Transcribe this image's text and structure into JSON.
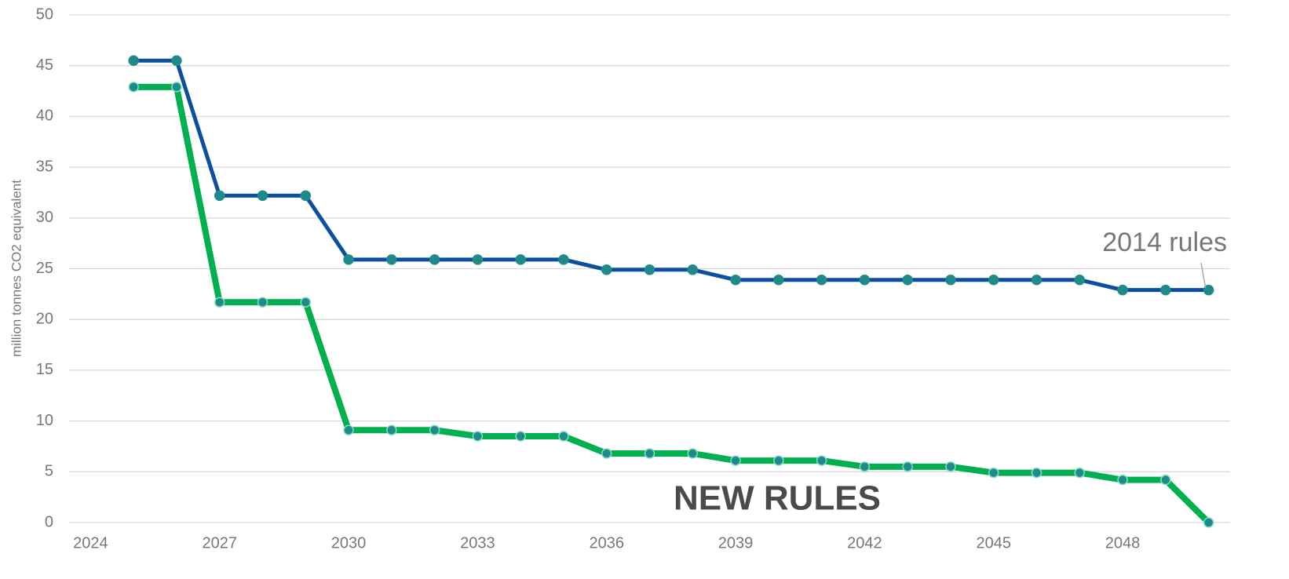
{
  "chart_data": {
    "type": "line",
    "y_label": "million tonnes CO2 equivalent",
    "x": [
      2025,
      2026,
      2027,
      2028,
      2029,
      2030,
      2031,
      2032,
      2033,
      2034,
      2035,
      2036,
      2037,
      2038,
      2039,
      2040,
      2041,
      2042,
      2043,
      2044,
      2045,
      2046,
      2047,
      2048,
      2049,
      2050
    ],
    "series": [
      {
        "name": "2014 rules",
        "color": "#0b4f9e",
        "marker_color": "#1f8a8a",
        "values": [
          45.5,
          45.5,
          32.2,
          32.2,
          32.2,
          25.9,
          25.9,
          25.9,
          25.9,
          25.9,
          25.9,
          24.9,
          24.9,
          24.9,
          23.9,
          23.9,
          23.9,
          23.9,
          23.9,
          23.9,
          23.9,
          23.9,
          23.9,
          22.9,
          22.9,
          22.9
        ]
      },
      {
        "name": "NEW RULES",
        "color": "#00b050",
        "marker_color": "#1f8a8a",
        "values": [
          42.9,
          42.9,
          21.7,
          21.7,
          21.7,
          9.1,
          9.1,
          9.1,
          8.5,
          8.5,
          8.5,
          6.8,
          6.8,
          6.8,
          6.1,
          6.1,
          6.1,
          5.5,
          5.5,
          5.5,
          4.9,
          4.9,
          4.9,
          4.2,
          4.2,
          0
        ]
      }
    ],
    "xlim": [
      2023.5,
      2050.5
    ],
    "xticks": [
      2024,
      2027,
      2030,
      2033,
      2036,
      2039,
      2042,
      2045,
      2048
    ],
    "ylim": [
      0,
      50
    ],
    "yticks": [
      0,
      5,
      10,
      15,
      20,
      25,
      30,
      35,
      40,
      45,
      50
    ],
    "grid": true
  }
}
